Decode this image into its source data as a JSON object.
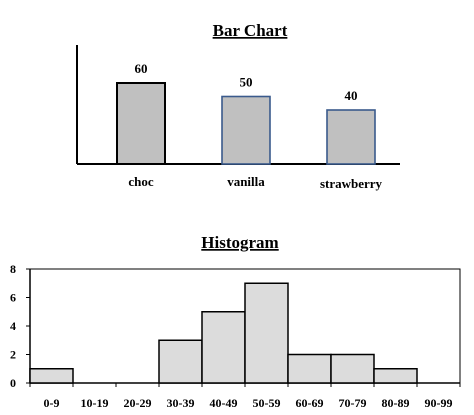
{
  "chart_data": [
    {
      "type": "bar",
      "title": "Bar Chart",
      "categories": [
        "choc",
        "vanilla",
        "strawberry"
      ],
      "values": [
        60,
        50,
        40
      ],
      "data_labels": [
        "60",
        "50",
        "40"
      ],
      "ylim": [
        0,
        70
      ],
      "grid": false,
      "colors": {
        "fill": "#c0c0c0",
        "first_border": "#000000",
        "other_border": "#3a5a8c"
      }
    },
    {
      "type": "bar",
      "title": "Histogram",
      "categories": [
        "0-9",
        "10-19",
        "20-29",
        "30-39",
        "40-49",
        "50-59",
        "60-69",
        "70-79",
        "80-89",
        "90-99"
      ],
      "values": [
        1,
        0,
        0,
        3,
        5,
        7,
        2,
        2,
        1,
        0
      ],
      "yticks": [
        0,
        2,
        4,
        6,
        8
      ],
      "ylim": [
        0,
        8
      ],
      "grid": false,
      "colors": {
        "fill": "#dcdcdc",
        "border": "#000000"
      }
    }
  ]
}
